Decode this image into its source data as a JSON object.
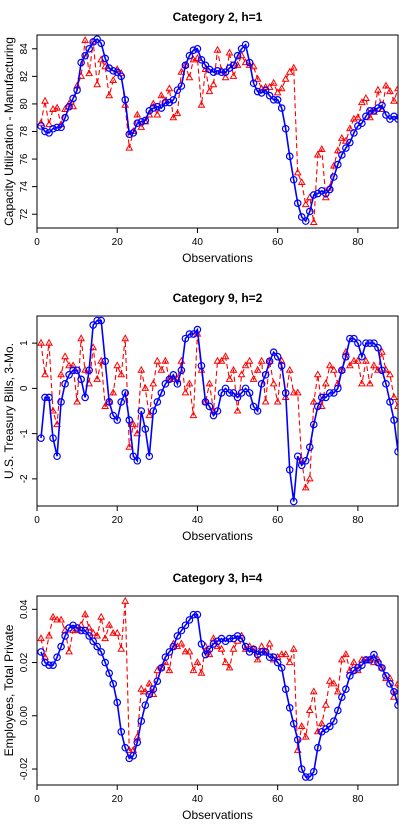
{
  "chart_data": [
    {
      "type": "line",
      "title": "Category 2, h=1",
      "xlabel": "Observations",
      "ylabel": "Capacity Utilization - Manufacturing",
      "xlim": [
        0,
        90
      ],
      "ylim": [
        71,
        85
      ],
      "xticks": [
        0,
        20,
        40,
        60,
        80
      ],
      "yticks": [
        72,
        74,
        76,
        78,
        80,
        82,
        84
      ],
      "x": [
        1,
        2,
        3,
        4,
        5,
        6,
        7,
        8,
        9,
        10,
        11,
        12,
        13,
        14,
        15,
        16,
        17,
        18,
        19,
        20,
        21,
        22,
        23,
        24,
        25,
        26,
        27,
        28,
        29,
        30,
        31,
        32,
        33,
        34,
        35,
        36,
        37,
        38,
        39,
        40,
        41,
        42,
        43,
        44,
        45,
        46,
        47,
        48,
        49,
        50,
        51,
        52,
        53,
        54,
        55,
        56,
        57,
        58,
        59,
        60,
        61,
        62,
        63,
        64,
        65,
        66,
        67,
        68,
        69,
        70,
        71,
        72,
        73,
        74,
        75,
        76,
        77,
        78,
        79,
        80,
        81,
        82,
        83,
        84,
        85,
        86,
        87,
        88,
        89,
        90
      ],
      "series": [
        {
          "color": "#0000ff",
          "marker": "circle",
          "line": "solid",
          "values": [
            78.4,
            78.0,
            77.9,
            78.2,
            78.3,
            78.3,
            79.0,
            79.8,
            80.4,
            81.0,
            83.0,
            83.5,
            84.0,
            84.5,
            84.7,
            84.4,
            83.3,
            82.6,
            82.4,
            82.3,
            82.0,
            80.3,
            77.8,
            77.9,
            78.6,
            78.7,
            78.8,
            79.5,
            79.7,
            79.8,
            79.7,
            80.1,
            80.1,
            80.3,
            81.0,
            81.3,
            82.8,
            83.5,
            83.9,
            84.0,
            83.2,
            82.8,
            82.5,
            82.3,
            82.4,
            82.3,
            82.3,
            82.6,
            82.8,
            83.5,
            84.0,
            84.3,
            83.0,
            81.5,
            80.9,
            80.8,
            81.0,
            80.6,
            80.3,
            80.3,
            79.7,
            78.2,
            76.2,
            74.5,
            72.8,
            71.8,
            71.5,
            72.2,
            73.4,
            73.5,
            73.7,
            73.5,
            73.8,
            74.7,
            75.6,
            76.3,
            76.8,
            77.2,
            77.9,
            78.4,
            78.6,
            79.1,
            79.5,
            79.5,
            79.7,
            79.9,
            79.2,
            78.9,
            79.1,
            78.9
          ]
        },
        {
          "color": "#ff0000",
          "marker": "triangle",
          "line": "dashed",
          "values": [
            78.6,
            80.2,
            78.5,
            79.6,
            79.7,
            78.5,
            79.6,
            80.0,
            79.8,
            81.3,
            82.0,
            84.6,
            82.2,
            84.5,
            81.4,
            83.2,
            82.7,
            80.6,
            81.7,
            82.5,
            82.2,
            79.9,
            76.8,
            78.0,
            79.2,
            78.3,
            78.7,
            79.2,
            80.0,
            79.2,
            80.6,
            80.2,
            81.1,
            79.0,
            79.3,
            82.3,
            82.8,
            81.9,
            83.2,
            83.3,
            79.9,
            82.5,
            80.9,
            81.4,
            83.9,
            82.4,
            81.9,
            83.7,
            82.0,
            82.8,
            83.5,
            83.0,
            82.8,
            82.7,
            81.8,
            81.1,
            81.2,
            81.2,
            81.5,
            80.8,
            81.1,
            81.8,
            82.3,
            82.6,
            75.0,
            74.3,
            72.7,
            73.2,
            71.4,
            76.3,
            76.7,
            73.2,
            73.9,
            75.5,
            76.6,
            77.5,
            77.3,
            78.2,
            78.9,
            79.0,
            80.1,
            80.4,
            79.0,
            79.4,
            81.0,
            79.6,
            81.3,
            80.9,
            80.2,
            81.1
          ]
        }
      ]
    },
    {
      "type": "line",
      "title": "Category 9, h=2",
      "xlabel": "Observations",
      "ylabel": "U.S. Treasury Bills, 3-Mo.",
      "xlim": [
        0,
        90
      ],
      "ylim": [
        -2.6,
        1.6
      ],
      "xticks": [
        0,
        20,
        40,
        60,
        80
      ],
      "yticks": [
        -2,
        -1,
        0,
        1
      ],
      "x": [
        1,
        2,
        3,
        4,
        5,
        6,
        7,
        8,
        9,
        10,
        11,
        12,
        13,
        14,
        15,
        16,
        17,
        18,
        19,
        20,
        21,
        22,
        23,
        24,
        25,
        26,
        27,
        28,
        29,
        30,
        31,
        32,
        33,
        34,
        35,
        36,
        37,
        38,
        39,
        40,
        41,
        42,
        43,
        44,
        45,
        46,
        47,
        48,
        49,
        50,
        51,
        52,
        53,
        54,
        55,
        56,
        57,
        58,
        59,
        60,
        61,
        62,
        63,
        64,
        65,
        66,
        67,
        68,
        69,
        70,
        71,
        72,
        73,
        74,
        75,
        76,
        77,
        78,
        79,
        80,
        81,
        82,
        83,
        84,
        85,
        86,
        87,
        88,
        89,
        90
      ],
      "series": [
        {
          "color": "#0000ff",
          "marker": "circle",
          "line": "solid",
          "values": [
            -1.1,
            -0.2,
            -0.2,
            -1.1,
            -1.5,
            -0.3,
            0.1,
            0.3,
            0.4,
            0.4,
            0.2,
            -0.2,
            0.4,
            1.4,
            1.5,
            1.5,
            0.6,
            -0.3,
            -0.6,
            -0.7,
            -0.3,
            -0.1,
            -0.7,
            -1.5,
            -1.6,
            -0.5,
            -0.9,
            -1.5,
            -0.5,
            -0.3,
            -0.1,
            0.1,
            0.2,
            0.3,
            0.1,
            0.4,
            1.1,
            1.2,
            1.2,
            1.3,
            0.5,
            -0.3,
            -0.4,
            -0.6,
            -0.5,
            -0.1,
            0.0,
            -0.1,
            -0.1,
            -0.2,
            -0.1,
            0.0,
            -0.1,
            -0.4,
            -0.5,
            0.1,
            0.3,
            0.6,
            0.8,
            0.7,
            0.5,
            -0.1,
            -1.8,
            -2.5,
            -1.5,
            -1.7,
            -1.6,
            -1.3,
            -0.8,
            -0.4,
            -0.2,
            -0.2,
            -0.1,
            -0.1,
            0.0,
            0.4,
            0.7,
            1.1,
            1.1,
            1.0,
            0.7,
            1.0,
            1.0,
            1.0,
            0.9,
            0.4,
            0.1,
            -0.3,
            -0.7,
            -1.4
          ]
        },
        {
          "color": "#ff0000",
          "marker": "triangle",
          "line": "dashed",
          "values": [
            1.0,
            0.3,
            1.0,
            -0.5,
            -0.8,
            0.3,
            0.7,
            0.5,
            0.5,
            -0.3,
            1.1,
            0.4,
            0.1,
            0.9,
            0.2,
            0.6,
            -0.4,
            -0.3,
            -0.1,
            0.5,
            0.3,
            1.1,
            -1.3,
            -0.8,
            -1.0,
            0.4,
            0.0,
            -0.6,
            0.1,
            0.6,
            0.4,
            0.6,
            0.2,
            0.2,
            0.2,
            0.6,
            -0.1,
            0.1,
            -0.6,
            1.2,
            0.4,
            -0.3,
            0.1,
            -0.5,
            0.6,
            0.6,
            0.7,
            0.2,
            0.4,
            -0.5,
            0.3,
            0.5,
            0.6,
            0.2,
            0.4,
            0.6,
            -0.3,
            0.6,
            0.1,
            -0.3,
            0.6,
            -0.2,
            0.4,
            -0.1,
            -0.1,
            -1.6,
            -2.2,
            -2.0,
            -0.3,
            0.3,
            -0.4,
            0.1,
            0.5,
            0.4,
            0.1,
            0.4,
            0.8,
            0.5,
            0.6,
            0.6,
            0.1,
            0.6,
            0.1,
            0.5,
            0.4,
            0.8,
            0.4,
            0.3,
            -0.2,
            -0.4
          ]
        }
      ]
    },
    {
      "type": "line",
      "title": "Category 3, h=4",
      "xlabel": "Observations",
      "ylabel": "Employees, Total Private",
      "xlim": [
        0,
        90
      ],
      "ylim": [
        -0.026,
        0.045
      ],
      "xticks": [
        0,
        20,
        40,
        60,
        80
      ],
      "yticks": [
        -0.02,
        0.0,
        0.02,
        0.04
      ],
      "yticklabels": [
        "-0.02",
        "0.00",
        "0.02",
        "0.04"
      ],
      "x": [
        1,
        2,
        3,
        4,
        5,
        6,
        7,
        8,
        9,
        10,
        11,
        12,
        13,
        14,
        15,
        16,
        17,
        18,
        19,
        20,
        21,
        22,
        23,
        24,
        25,
        26,
        27,
        28,
        29,
        30,
        31,
        32,
        33,
        34,
        35,
        36,
        37,
        38,
        39,
        40,
        41,
        42,
        43,
        44,
        45,
        46,
        47,
        48,
        49,
        50,
        51,
        52,
        53,
        54,
        55,
        56,
        57,
        58,
        59,
        60,
        61,
        62,
        63,
        64,
        65,
        66,
        67,
        68,
        69,
        70,
        71,
        72,
        73,
        74,
        75,
        76,
        77,
        78,
        79,
        80,
        81,
        82,
        83,
        84,
        85,
        86,
        87,
        88,
        89,
        90
      ],
      "series": [
        {
          "color": "#0000ff",
          "marker": "circle",
          "line": "solid",
          "values": [
            0.024,
            0.02,
            0.019,
            0.019,
            0.022,
            0.026,
            0.03,
            0.033,
            0.034,
            0.033,
            0.032,
            0.032,
            0.03,
            0.028,
            0.026,
            0.024,
            0.02,
            0.016,
            0.012,
            0.005,
            -0.006,
            -0.012,
            -0.016,
            -0.015,
            -0.01,
            -0.002,
            0.004,
            0.008,
            0.01,
            0.013,
            0.018,
            0.022,
            0.024,
            0.026,
            0.03,
            0.032,
            0.034,
            0.036,
            0.038,
            0.038,
            0.027,
            0.023,
            0.025,
            0.027,
            0.028,
            0.029,
            0.028,
            0.029,
            0.029,
            0.03,
            0.029,
            0.026,
            0.024,
            0.025,
            0.023,
            0.024,
            0.024,
            0.022,
            0.022,
            0.02,
            0.018,
            0.01,
            0.003,
            -0.003,
            -0.009,
            -0.02,
            -0.023,
            -0.023,
            -0.021,
            -0.012,
            -0.006,
            -0.005,
            -0.004,
            -0.002,
            0.002,
            0.007,
            0.01,
            0.015,
            0.017,
            0.018,
            0.019,
            0.021,
            0.021,
            0.023,
            0.02,
            0.018,
            0.015,
            0.012,
            0.009,
            0.004
          ]
        },
        {
          "color": "#ff0000",
          "marker": "triangle",
          "line": "dashed",
          "values": [
            0.029,
            0.022,
            0.03,
            0.037,
            0.036,
            0.036,
            0.032,
            0.024,
            0.032,
            0.032,
            0.034,
            0.038,
            0.033,
            0.031,
            0.03,
            0.037,
            0.029,
            0.034,
            0.031,
            0.031,
            0.025,
            0.043,
            -0.013,
            -0.013,
            -0.008,
            0.01,
            0.009,
            0.012,
            0.008,
            0.017,
            0.018,
            0.02,
            0.017,
            0.027,
            0.026,
            0.027,
            0.024,
            0.024,
            0.017,
            0.02,
            0.016,
            0.026,
            0.023,
            0.029,
            0.026,
            0.025,
            0.02,
            0.018,
            0.025,
            0.028,
            0.03,
            0.025,
            0.026,
            0.025,
            0.021,
            0.026,
            0.024,
            0.027,
            0.021,
            0.022,
            0.023,
            0.023,
            0.02,
            0.025,
            -0.013,
            -0.004,
            -0.008,
            0.002,
            0.009,
            -0.006,
            -0.003,
            0.004,
            0.013,
            0.012,
            0.009,
            0.021,
            0.023,
            0.017,
            0.02,
            0.017,
            0.021,
            0.021,
            0.021,
            0.02,
            0.021,
            0.018,
            0.014,
            0.014,
            0.007,
            0.012
          ]
        }
      ]
    }
  ]
}
